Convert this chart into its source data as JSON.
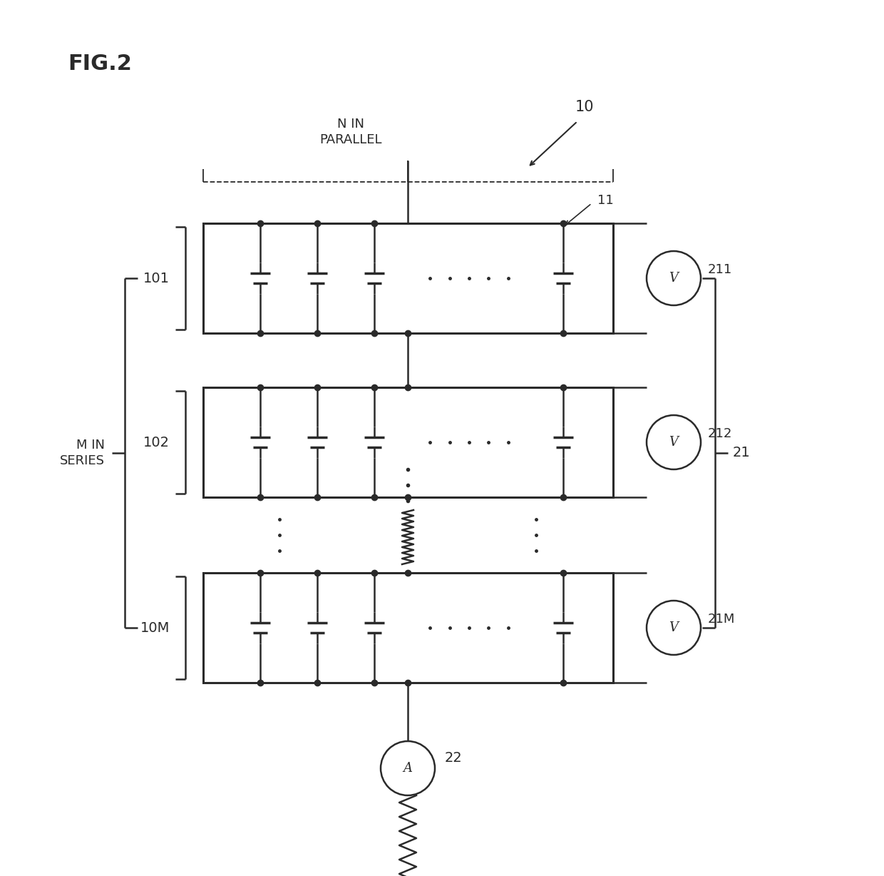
{
  "fig_label": "FIG.2",
  "bg_color": "#ffffff",
  "line_color": "#2a2a2a",
  "dot_color": "#2a2a2a",
  "system_label": "10",
  "module_labels": [
    "101",
    "102",
    "10M"
  ],
  "voltmeter_labels": [
    "211",
    "212",
    "21M"
  ],
  "series_label": "21",
  "m_in_series_label": "M IN\nSERIES",
  "n_in_parallel_label": "N IN\nPARALLEL",
  "ammeter_label": "22",
  "module_label_11": "11"
}
